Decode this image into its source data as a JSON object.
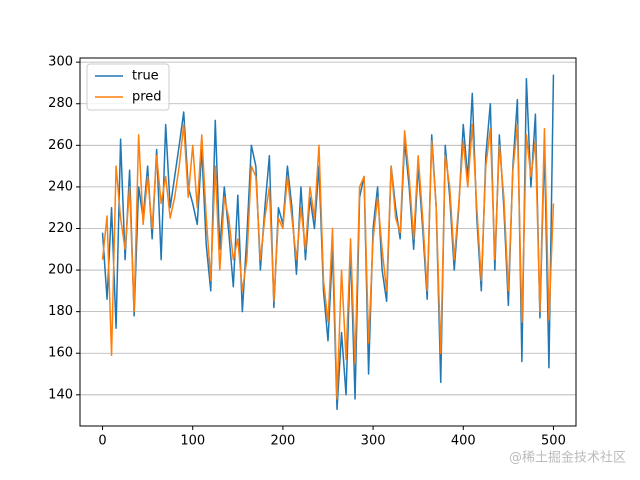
{
  "chart_data": {
    "type": "line",
    "x": [
      0,
      5,
      10,
      15,
      20,
      25,
      30,
      35,
      40,
      45,
      50,
      55,
      60,
      65,
      70,
      75,
      80,
      85,
      90,
      95,
      100,
      105,
      110,
      115,
      120,
      125,
      130,
      135,
      140,
      145,
      150,
      155,
      160,
      165,
      170,
      175,
      180,
      185,
      190,
      195,
      200,
      205,
      210,
      215,
      220,
      225,
      230,
      235,
      240,
      245,
      250,
      255,
      260,
      265,
      270,
      275,
      280,
      285,
      290,
      295,
      300,
      305,
      310,
      315,
      320,
      325,
      330,
      335,
      340,
      345,
      350,
      355,
      360,
      365,
      370,
      375,
      380,
      385,
      390,
      395,
      400,
      405,
      410,
      415,
      420,
      425,
      430,
      435,
      440,
      445,
      450,
      455,
      460,
      465,
      470,
      475,
      480,
      485,
      490,
      495,
      500
    ],
    "series": [
      {
        "name": "true",
        "color": "#1f77b4",
        "values": [
          218,
          186,
          230,
          172,
          263,
          205,
          248,
          178,
          240,
          225,
          250,
          215,
          258,
          205,
          270,
          230,
          245,
          260,
          276,
          240,
          232,
          222,
          258,
          212,
          190,
          272,
          210,
          240,
          218,
          192,
          236,
          180,
          216,
          260,
          250,
          200,
          230,
          255,
          182,
          230,
          222,
          250,
          230,
          198,
          240,
          205,
          235,
          220,
          250,
          190,
          166,
          210,
          133,
          170,
          140,
          210,
          138,
          235,
          245,
          150,
          220,
          240,
          200,
          185,
          250,
          230,
          215,
          262,
          240,
          210,
          250,
          220,
          186,
          265,
          230,
          146,
          260,
          235,
          200,
          230,
          270,
          244,
          285,
          225,
          190,
          255,
          280,
          200,
          265,
          230,
          183,
          250,
          282,
          156,
          292,
          240,
          275,
          177,
          260,
          153,
          294
        ]
      },
      {
        "name": "pred",
        "color": "#ff7f0e",
        "values": [
          205,
          226,
          159,
          250,
          225,
          210,
          240,
          180,
          265,
          222,
          245,
          220,
          255,
          232,
          245,
          225,
          235,
          250,
          270,
          235,
          260,
          230,
          265,
          225,
          195,
          250,
          200,
          235,
          225,
          205,
          215,
          190,
          205,
          250,
          245,
          205,
          225,
          240,
          185,
          225,
          220,
          245,
          225,
          205,
          230,
          210,
          240,
          225,
          260,
          195,
          175,
          220,
          138,
          200,
          157,
          215,
          155,
          240,
          245,
          165,
          215,
          235,
          210,
          190,
          250,
          225,
          218,
          267,
          245,
          215,
          255,
          225,
          190,
          262,
          230,
          160,
          255,
          240,
          205,
          232,
          262,
          240,
          270,
          230,
          195,
          250,
          268,
          205,
          260,
          235,
          190,
          248,
          270,
          175,
          265,
          245,
          262,
          180,
          268,
          176,
          232
        ]
      }
    ],
    "xlim": [
      -25,
      525
    ],
    "ylim": [
      125,
      302
    ],
    "xticks": [
      0,
      100,
      200,
      300,
      400,
      500
    ],
    "yticks": [
      140,
      160,
      180,
      200,
      220,
      240,
      260,
      280,
      300
    ],
    "grid": "y",
    "legend": "upper left",
    "watermark": "@稀土掘金技术社区"
  }
}
